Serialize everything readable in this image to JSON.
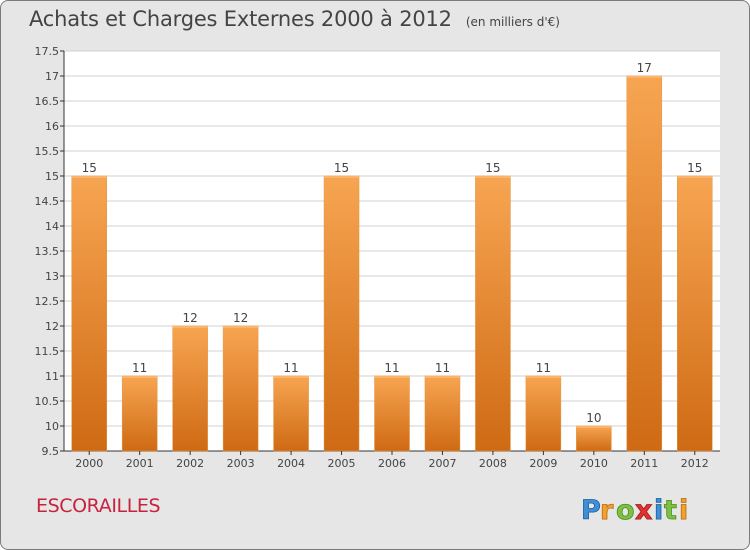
{
  "title": "Achats et Charges Externes 2000 à 2012",
  "unit": "(en milliers d'€)",
  "commune": "ESCORAILLES",
  "brand": "Proxiti",
  "colors": {
    "background": "#e6e6e6",
    "bar_light": "#f7a552",
    "bar_dark": "#cf6a14",
    "grid": "#d0d0d0",
    "commune": "#c8223f"
  },
  "chart_data": {
    "type": "bar",
    "categories": [
      "2000",
      "2001",
      "2002",
      "2003",
      "2004",
      "2005",
      "2006",
      "2007",
      "2008",
      "2009",
      "2010",
      "2011",
      "2012"
    ],
    "values": [
      15,
      11,
      12,
      12,
      11,
      15,
      11,
      11,
      15,
      11,
      10,
      17,
      15
    ],
    "data_labels": [
      "15",
      "11",
      "12",
      "12",
      "11",
      "15",
      "11",
      "11",
      "15",
      "11",
      "10",
      "17",
      "15"
    ],
    "y_ticks": [
      "9.5",
      "10",
      "10.5",
      "11",
      "11.5",
      "12",
      "12.5",
      "13",
      "13.5",
      "14",
      "14.5",
      "15",
      "15.5",
      "16",
      "16.5",
      "17",
      "17.5"
    ],
    "ylim": [
      9.5,
      17.5
    ],
    "grid": true,
    "legend": "none"
  }
}
